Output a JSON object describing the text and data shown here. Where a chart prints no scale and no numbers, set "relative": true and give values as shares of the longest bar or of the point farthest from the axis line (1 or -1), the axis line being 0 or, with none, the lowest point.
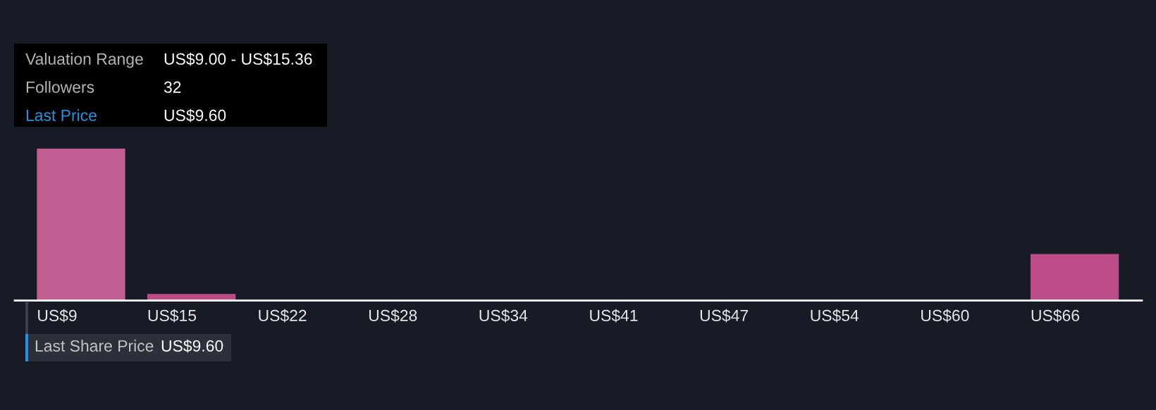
{
  "chart_data": {
    "type": "bar",
    "relative": true,
    "categories": [
      "US$9",
      "US$15",
      "US$22",
      "US$28",
      "US$34",
      "US$41",
      "US$47",
      "US$54",
      "US$60",
      "US$66"
    ],
    "values": [
      1,
      0.044,
      0,
      0,
      0,
      0,
      0,
      0,
      0,
      0.306
    ],
    "colors": [
      "#c25e92",
      "#bc4c87",
      "#bc4c87",
      "#bc4c87",
      "#bc4c87",
      "#bc4c87",
      "#bc4c87",
      "#bc4c87",
      "#bc4c87",
      "#bc4c87"
    ],
    "annotations": [
      "Valuation Range",
      "US$9.00 - US$15.36",
      "Followers",
      "32",
      "Last Price",
      "US$9.60",
      "Last Share Price",
      "US$9.60"
    ]
  }
}
